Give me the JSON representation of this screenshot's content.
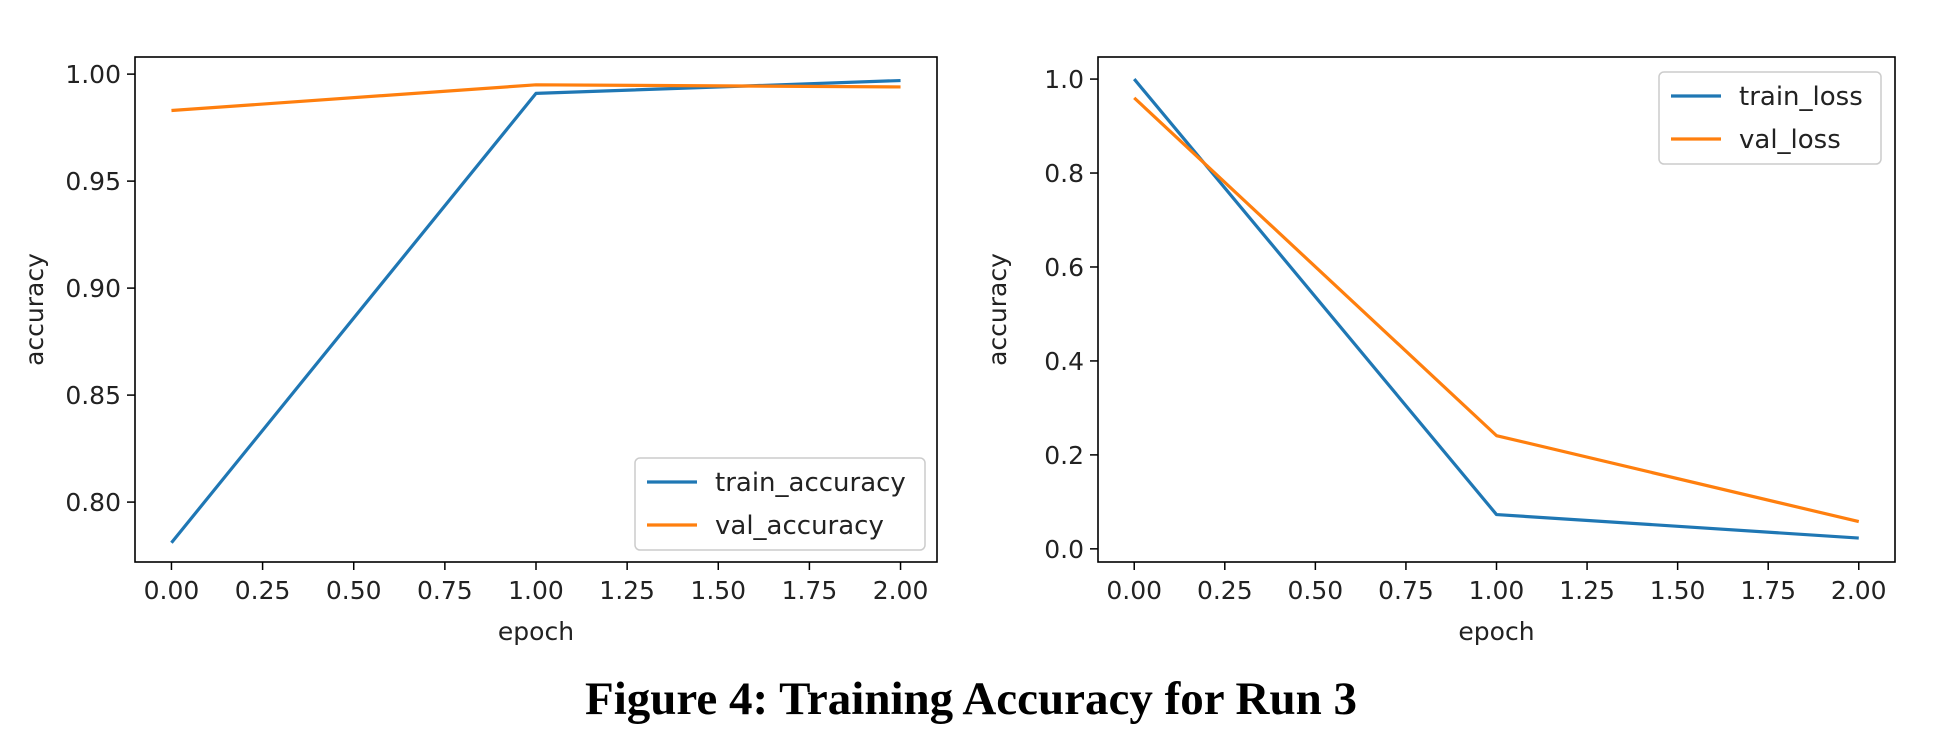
{
  "figure": {
    "caption": "Figure 4: Training Accuracy for Run 3"
  },
  "chart_data": [
    {
      "type": "line",
      "xlabel": "epoch",
      "ylabel": "accuracy",
      "xlim": [
        -0.1,
        2.1
      ],
      "ylim": [
        0.772,
        1.008
      ],
      "xticks": [
        0.0,
        0.25,
        0.5,
        0.75,
        1.0,
        1.25,
        1.5,
        1.75,
        2.0
      ],
      "xtick_labels": [
        "0.00",
        "0.25",
        "0.50",
        "0.75",
        "1.00",
        "1.25",
        "1.50",
        "1.75",
        "2.00"
      ],
      "yticks": [
        0.8,
        0.85,
        0.9,
        0.95,
        1.0
      ],
      "ytick_labels": [
        "0.80",
        "0.85",
        "0.90",
        "0.95",
        "1.00"
      ],
      "grid": false,
      "legend_position": "lower right",
      "x": [
        0,
        1,
        2
      ],
      "series": [
        {
          "name": "train_accuracy",
          "color": "#1f77b4",
          "values": [
            0.781,
            0.991,
            0.997
          ]
        },
        {
          "name": "val_accuracy",
          "color": "#ff7f0e",
          "values": [
            0.983,
            0.995,
            0.994
          ]
        }
      ]
    },
    {
      "type": "line",
      "xlabel": "epoch",
      "ylabel": "accuracy",
      "xlim": [
        -0.1,
        2.1
      ],
      "ylim": [
        -0.028,
        1.047
      ],
      "xticks": [
        0.0,
        0.25,
        0.5,
        0.75,
        1.0,
        1.25,
        1.5,
        1.75,
        2.0
      ],
      "xtick_labels": [
        "0.00",
        "0.25",
        "0.50",
        "0.75",
        "1.00",
        "1.25",
        "1.50",
        "1.75",
        "2.00"
      ],
      "yticks": [
        0.0,
        0.2,
        0.4,
        0.6,
        0.8,
        1.0
      ],
      "ytick_labels": [
        "0.0",
        "0.2",
        "0.4",
        "0.6",
        "0.8",
        "1.0"
      ],
      "grid": false,
      "legend_position": "upper right",
      "x": [
        0,
        1,
        2
      ],
      "series": [
        {
          "name": "train_loss",
          "color": "#1f77b4",
          "values": [
            1.0,
            0.073,
            0.023
          ]
        },
        {
          "name": "val_loss",
          "color": "#ff7f0e",
          "values": [
            0.96,
            0.241,
            0.058
          ]
        }
      ]
    }
  ]
}
